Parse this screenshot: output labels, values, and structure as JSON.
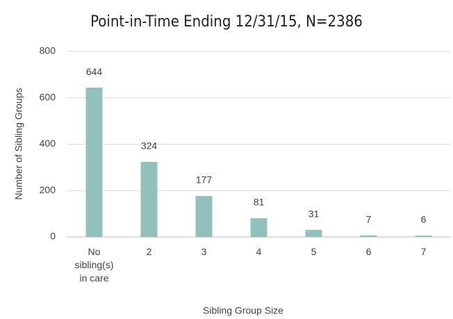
{
  "chart_data": {
    "type": "bar",
    "title": "Point-in-Time Ending 12/31/15, N=2386",
    "x_label": "Sibling Group Size",
    "y_label": "Number of Sibling Groups",
    "categories": [
      "No sibling(s) in care",
      "2",
      "3",
      "4",
      "5",
      "6",
      "7"
    ],
    "values": [
      644,
      324,
      177,
      81,
      31,
      7,
      6
    ],
    "color": "#93bfbc",
    "ylim": [
      0,
      800
    ],
    "yticks": [
      0,
      200,
      400,
      600,
      800
    ],
    "grid": true
  }
}
